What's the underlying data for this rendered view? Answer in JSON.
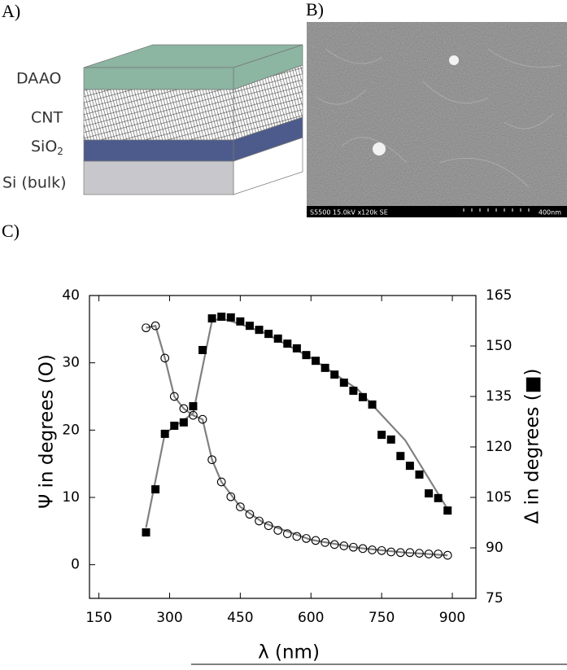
{
  "panels": {
    "a": {
      "label": "A)",
      "layers": [
        {
          "text": "DAAO"
        },
        {
          "text": "CNT"
        },
        {
          "text": "SiO",
          "sub": "2"
        },
        {
          "text": "Si (bulk)"
        }
      ]
    },
    "b": {
      "label": "B)",
      "info": "S5500 15.0kV x120k SE",
      "scale": "400nm"
    },
    "c": {
      "label": "C)"
    }
  },
  "chart_data": {
    "type": "line",
    "xlabel": "λ (nm)",
    "ylabel": "Ψ in degrees (O)",
    "y2label": "Δ in degrees (■)",
    "xlim": [
      130,
      950
    ],
    "xticks": [
      150,
      300,
      450,
      600,
      750,
      900
    ],
    "ylim": [
      -5,
      40
    ],
    "yticks": [
      0,
      10,
      20,
      30,
      40
    ],
    "y2lim": [
      75,
      165
    ],
    "y2ticks": [
      75,
      90,
      105,
      120,
      135,
      150,
      165
    ],
    "x": [
      250,
      270,
      290,
      310,
      330,
      350,
      370,
      390,
      410,
      430,
      450,
      470,
      490,
      510,
      530,
      550,
      570,
      590,
      610,
      630,
      650,
      670,
      690,
      710,
      730,
      750,
      770,
      790,
      810,
      830,
      850,
      870,
      890
    ],
    "series": [
      {
        "color": "#808080",
        "x": [
          250,
          270,
          290,
          310,
          330,
          350,
          370,
          390,
          410,
          450,
          500,
          600,
          700,
          800,
          890
        ],
        "values": [
          35.2,
          35.5,
          30.7,
          25.0,
          23.2,
          22.2,
          21.6,
          15.6,
          12.3,
          8.6,
          6.2,
          3.7,
          2.5,
          1.8,
          1.4
        ]
      },
      {
        "color": "#808080",
        "axis": "y2",
        "x": [
          250,
          270,
          290,
          350,
          390,
          410,
          450,
          500,
          600,
          700,
          800,
          890
        ],
        "values": [
          96,
          110,
          124,
          130,
          157.5,
          158.2,
          156.5,
          154,
          146.5,
          137,
          122,
          101.5
        ]
      },
      {
        "color": "#000000",
        "marker": "circle",
        "values": [
          35.2,
          35.5,
          30.7,
          25.0,
          23.2,
          22.2,
          21.6,
          15.6,
          12.3,
          10.1,
          8.6,
          7.5,
          6.5,
          5.8,
          5.1,
          4.6,
          4.2,
          3.9,
          3.6,
          3.3,
          3.0,
          2.8,
          2.6,
          2.4,
          2.2,
          2.1,
          1.9,
          1.8,
          1.8,
          1.7,
          1.6,
          1.6,
          1.4
        ]
      },
      {
        "color": "#000000",
        "marker": "square",
        "axis": "y2",
        "values": [
          94.6,
          107.4,
          123.9,
          126.3,
          127.3,
          132.1,
          148.8,
          158.2,
          158.7,
          158.5,
          157.3,
          156.0,
          154.8,
          153.6,
          152.2,
          150.7,
          149.3,
          147.3,
          145.6,
          143.5,
          141.5,
          139.1,
          136.7,
          134.8,
          132.6,
          123.6,
          122.2,
          117.3,
          114.4,
          111.8,
          106.2,
          104.8,
          101.1
        ]
      }
    ]
  }
}
